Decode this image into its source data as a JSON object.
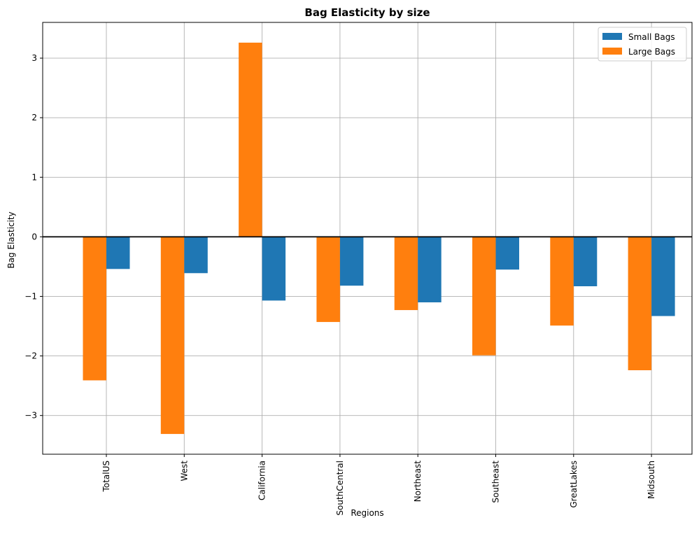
{
  "chart_data": {
    "type": "bar",
    "title": "Bag Elasticity by size",
    "xlabel": "Regions",
    "ylabel": "Bag Elasticity",
    "categories": [
      "TotalUS",
      "West",
      "California",
      "SouthCentral",
      "Northeast",
      "Southeast",
      "GreatLakes",
      "Midsouth"
    ],
    "series": [
      {
        "name": "Small Bags",
        "color": "#1f77b4",
        "values": [
          -0.54,
          -0.61,
          -1.07,
          -0.82,
          -1.1,
          -0.55,
          -0.83,
          -1.33
        ]
      },
      {
        "name": "Large Bags",
        "color": "#ff7f0e",
        "values": [
          -2.41,
          -3.31,
          3.26,
          -1.43,
          -1.23,
          -1.99,
          -1.49,
          -2.24
        ]
      }
    ],
    "ylim": [
      -3.65,
      3.6
    ],
    "yticks": [
      -3,
      -2,
      -1,
      0,
      1,
      2,
      3
    ],
    "ytick_labels": [
      "−3",
      "−2",
      "−1",
      "0",
      "1",
      "2",
      "3"
    ],
    "grid": true,
    "zero_line": true,
    "legend_position": "top-right"
  }
}
